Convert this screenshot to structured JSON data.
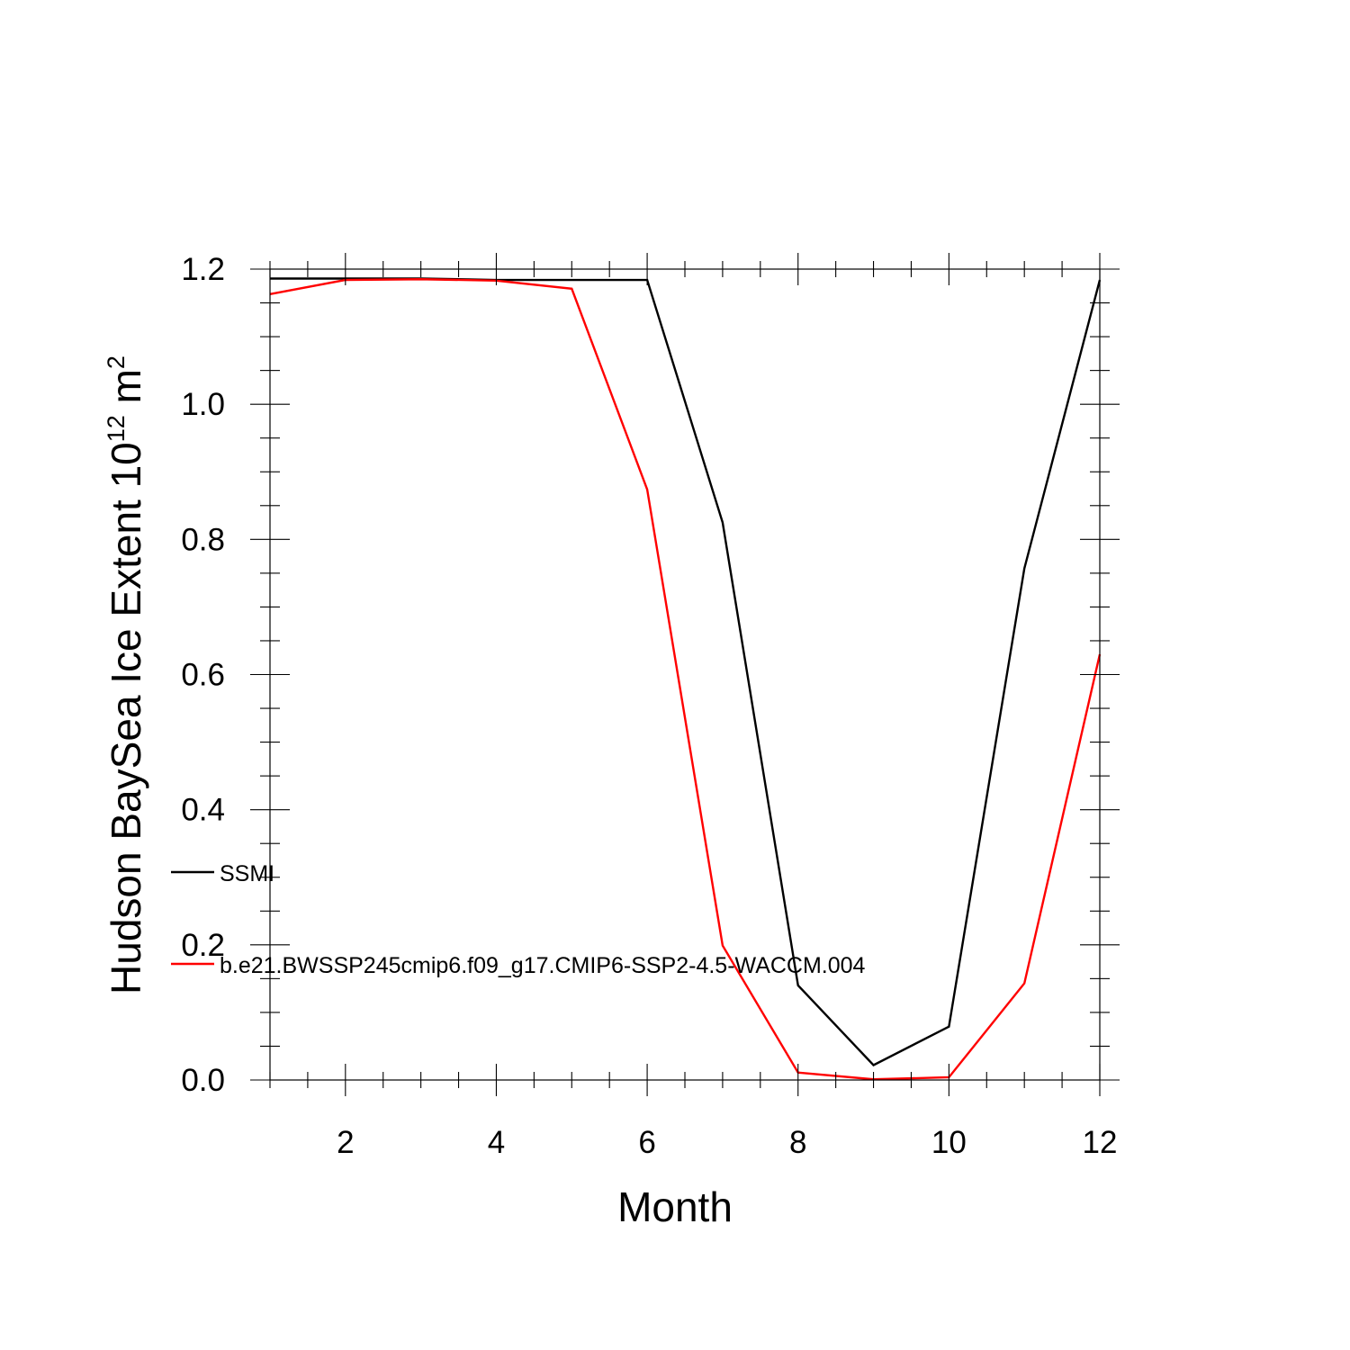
{
  "chart_data": {
    "type": "line",
    "xlabel": "Month",
    "ylabel_main": "Hudson BaySea Ice Extent 10",
    "ylabel_exponent": "12",
    "ylabel_unit": " m",
    "ylabel_unit_exponent": "2",
    "xlim": [
      1,
      12
    ],
    "ylim": [
      0,
      1.2
    ],
    "x_ticks": [
      2,
      4,
      6,
      8,
      10,
      12
    ],
    "x_tick_labels": [
      "2",
      "4",
      "6",
      "8",
      "10",
      "12"
    ],
    "y_ticks": [
      0,
      0.2,
      0.4,
      0.6,
      0.8,
      1.0,
      1.2
    ],
    "y_tick_labels": [
      "0.0",
      "0.2",
      "0.4",
      "0.6",
      "0.8",
      "1.0",
      "1.2"
    ],
    "grid": false,
    "legend_position": "left-inside",
    "x": [
      1,
      2,
      3,
      4,
      5,
      6,
      7,
      8,
      9,
      10,
      11,
      12
    ],
    "series": [
      {
        "name": "SSMI",
        "color": "#000000",
        "values": [
          1.186,
          1.186,
          1.186,
          1.184,
          1.184,
          1.184,
          0.825,
          0.14,
          0.022,
          0.079,
          0.757,
          1.184
        ]
      },
      {
        "name": "b.e21.BWSSP245cmip6.f09_g17.CMIP6-SSP2-4.5-WACCM.004",
        "color": "#ff0000",
        "values": [
          1.163,
          1.184,
          1.185,
          1.183,
          1.171,
          0.874,
          0.199,
          0.011,
          0.001,
          0.004,
          0.143,
          0.63
        ]
      }
    ]
  }
}
